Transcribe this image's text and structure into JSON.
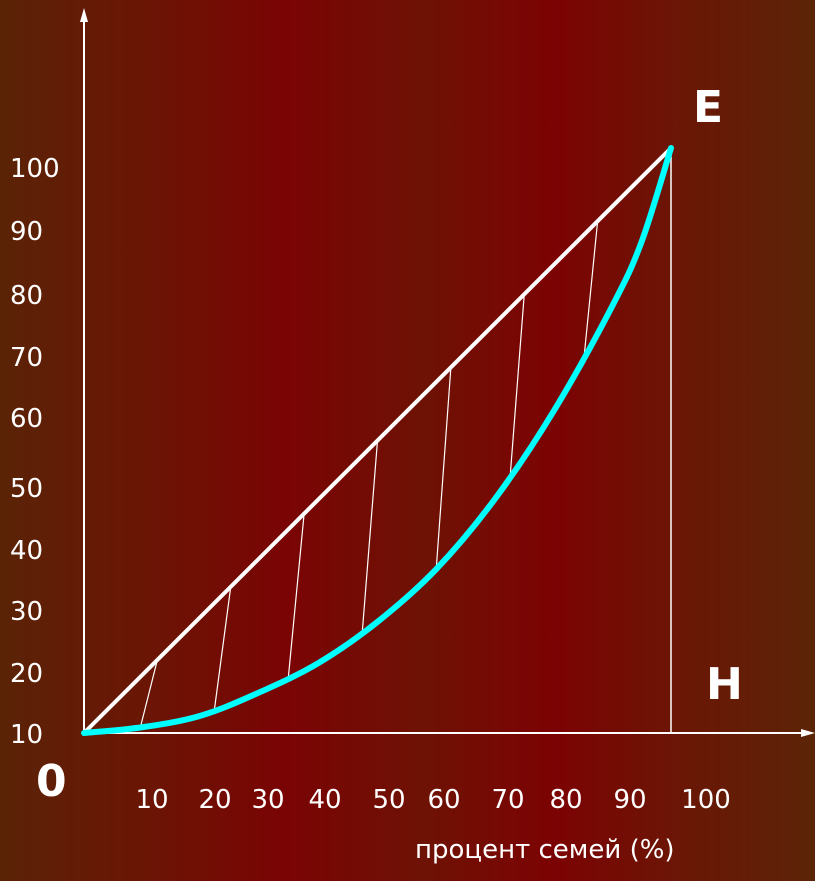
{
  "chart_data": {
    "type": "line",
    "xlabel": "процент семей (%)",
    "ylabel": "",
    "x_ticks": [
      "10",
      "20",
      "30",
      "40",
      "50",
      "60",
      "70",
      "80",
      "90",
      "100"
    ],
    "y_ticks": [
      "10",
      "20",
      "30",
      "40",
      "50",
      "60",
      "70",
      "80",
      "90",
      "100"
    ],
    "origin_label": "0",
    "point_labels": {
      "top_right": "E",
      "bottom_right": "H"
    },
    "xlim": [
      0,
      100
    ],
    "ylim": [
      0,
      100
    ],
    "series": [
      {
        "role": "equality-line",
        "color": "#ffffff",
        "x": [
          0,
          100
        ],
        "y": [
          0,
          100
        ]
      },
      {
        "role": "lorenz-curve",
        "color": "#00ffff",
        "x": [
          0,
          10,
          20,
          30,
          40,
          50,
          60,
          70,
          80,
          90,
          95,
          100
        ],
        "y": [
          0,
          1,
          3,
          7,
          12,
          19,
          28,
          40,
          55,
          73,
          84,
          100
        ]
      }
    ],
    "hatch_lines": 7,
    "grid": false
  }
}
